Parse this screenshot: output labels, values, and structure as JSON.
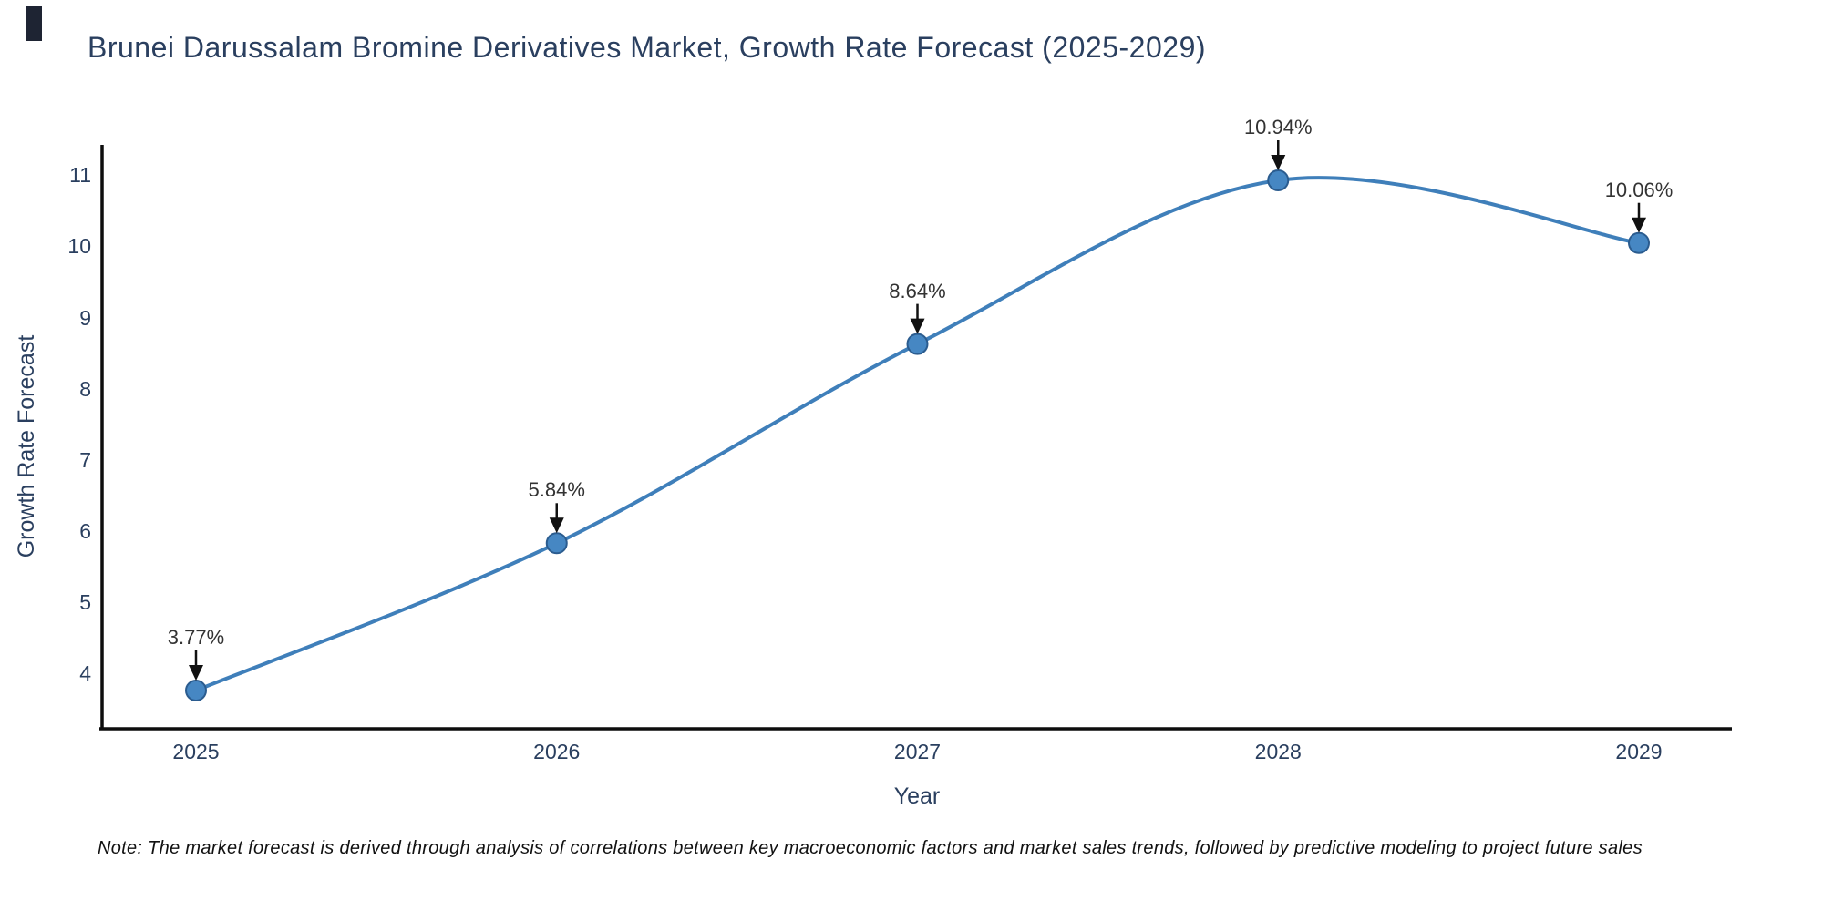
{
  "chart_data": {
    "type": "line",
    "title": "Brunei Darussalam Bromine Derivatives Market, Growth Rate Forecast (2025-2029)",
    "xlabel": "Year",
    "ylabel": "Growth Rate Forecast",
    "line_shape": "spline",
    "grid": false,
    "legend_position": "none",
    "x": [
      2025,
      2026,
      2027,
      2028,
      2029
    ],
    "y": [
      3.77,
      5.84,
      8.64,
      10.94,
      10.06
    ],
    "point_labels": [
      "3.77%",
      "5.84%",
      "8.64%",
      "10.94%",
      "10.06%"
    ],
    "x_tick_labels": [
      "2025",
      "2026",
      "2027",
      "2028",
      "2029"
    ],
    "y_tick_labels": [
      "4",
      "5",
      "6",
      "7",
      "8",
      "9",
      "10",
      "11"
    ],
    "xlim": [
      2024.74,
      2029.26
    ],
    "ylim": [
      3.23,
      11.44
    ],
    "colors": {
      "line": "#3f7fba",
      "marker_fill": "#4687c3",
      "marker_edge": "#2b5c8f",
      "axis": "#0d0d0d",
      "tick_text": "#2a3f5f",
      "title_text": "#2a3f5f",
      "annotation_text": "#333333",
      "arrow": "#111111"
    }
  },
  "note": {
    "text": "Note: The market forecast is derived through analysis of correlations between key macroeconomic factors and market sales trends, followed by predictive modeling to project future sales"
  }
}
